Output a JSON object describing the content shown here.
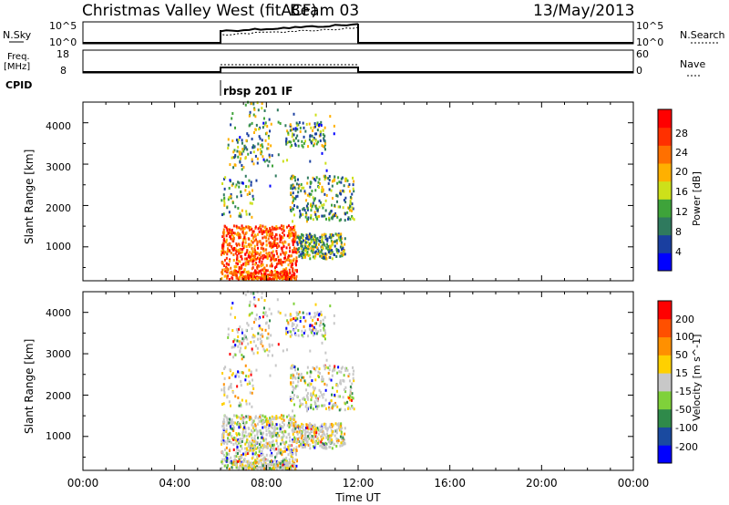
{
  "header": {
    "title": "Christmas Valley West (fitACF)",
    "beam": "Beam 03",
    "date": "13/May/2013"
  },
  "nsky_panel": {
    "left_label": "N.Sky",
    "right_label": "N.Search",
    "left_ticks": [
      "10^5",
      "10^0"
    ],
    "right_ticks": [
      "10^5",
      "10^0"
    ]
  },
  "freq_panel": {
    "left_label_1": "Freq.",
    "left_label_2": "[MHz]",
    "right_label": "Nave",
    "left_ticks": [
      "18",
      "8"
    ],
    "right_ticks": [
      "60",
      "0"
    ]
  },
  "cpid": {
    "label": "CPID",
    "value": "rbsp 201 IF"
  },
  "power_panel": {
    "ylabel": "Slant Range [km]",
    "yticks": [
      "4000",
      "3000",
      "2000",
      "1000"
    ],
    "colorbar_label": "Power [dB]",
    "colorbar_ticks": [
      "28",
      "24",
      "20",
      "16",
      "12",
      "8",
      "4"
    ],
    "colors": [
      "#0000ff",
      "#1a3fa0",
      "#2f7a5e",
      "#3ea33a",
      "#cde01a",
      "#ffb000",
      "#ff7000",
      "#ff3000",
      "#ff0000"
    ]
  },
  "velocity_panel": {
    "ylabel": "Slant Range [km]",
    "yticks": [
      "4000",
      "3000",
      "2000",
      "1000"
    ],
    "colorbar_label": "Velocity [m s^-1]",
    "colorbar_ticks": [
      "200",
      "100",
      "50",
      "15",
      "-15",
      "-50",
      "-100",
      "-200"
    ],
    "colors": [
      "#0000ff",
      "#1a4aa0",
      "#2f8a4a",
      "#7fd13a",
      "#c8c8c8",
      "#ffd000",
      "#ff9000",
      "#ff5000",
      "#ff0000"
    ]
  },
  "xaxis": {
    "label": "Time UT",
    "ticks": [
      "00:00",
      "04:00",
      "08:00",
      "12:00",
      "16:00",
      "20:00",
      "00:00"
    ]
  },
  "chart_data": {
    "type": "heatmap",
    "title": "Christmas Valley West (fitACF)",
    "xlabel": "Time UT",
    "ylabel": "Slant Range [km]",
    "xlim": [
      "00:00",
      "24:00"
    ],
    "ylim": [
      180,
      4500
    ],
    "data_interval": [
      "06:00",
      "12:00"
    ],
    "power_scale": {
      "label": "Power [dB]",
      "range": [
        0,
        32
      ]
    },
    "velocity_scale": {
      "label": "Velocity [m s^-1]",
      "range": [
        -250,
        250
      ]
    }
  }
}
